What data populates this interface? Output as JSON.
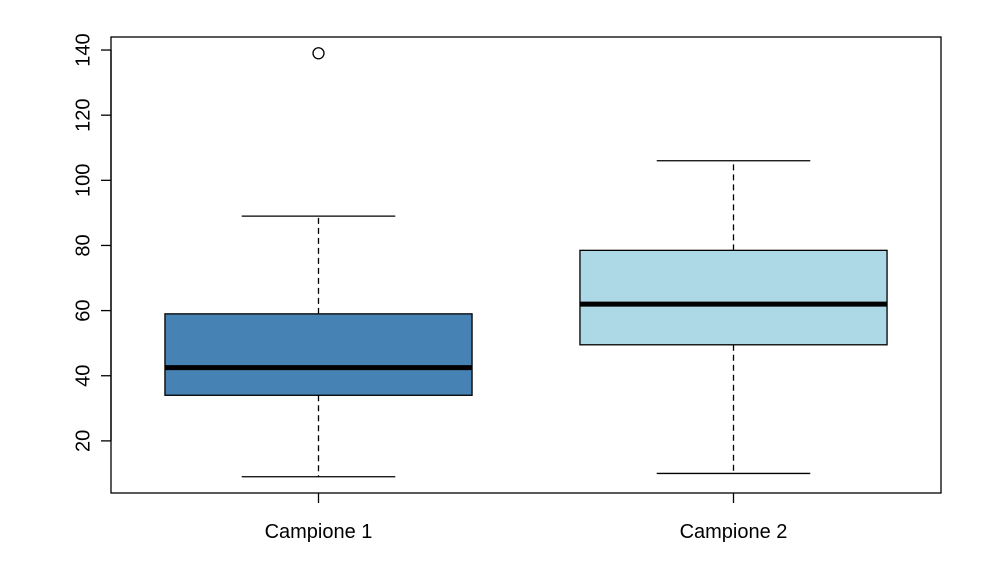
{
  "chart_data": {
    "type": "box",
    "title": "",
    "xlabel": "",
    "ylabel": "",
    "ylim": [
      4,
      144
    ],
    "yticks": [
      20,
      40,
      60,
      80,
      100,
      120,
      140
    ],
    "categories": [
      "Campione 1",
      "Campione 2"
    ],
    "boxes": [
      {
        "category": "Campione 1",
        "whisker_low": 9,
        "q1": 34,
        "median": 42.5,
        "q3": 59,
        "whisker_high": 89,
        "outliers": [
          139
        ],
        "color": "#4682b4"
      },
      {
        "category": "Campione 2",
        "whisker_low": 10,
        "q1": 49.5,
        "median": 62,
        "q3": 78.5,
        "whisker_high": 106,
        "outliers": [],
        "color": "#add8e6"
      }
    ]
  }
}
